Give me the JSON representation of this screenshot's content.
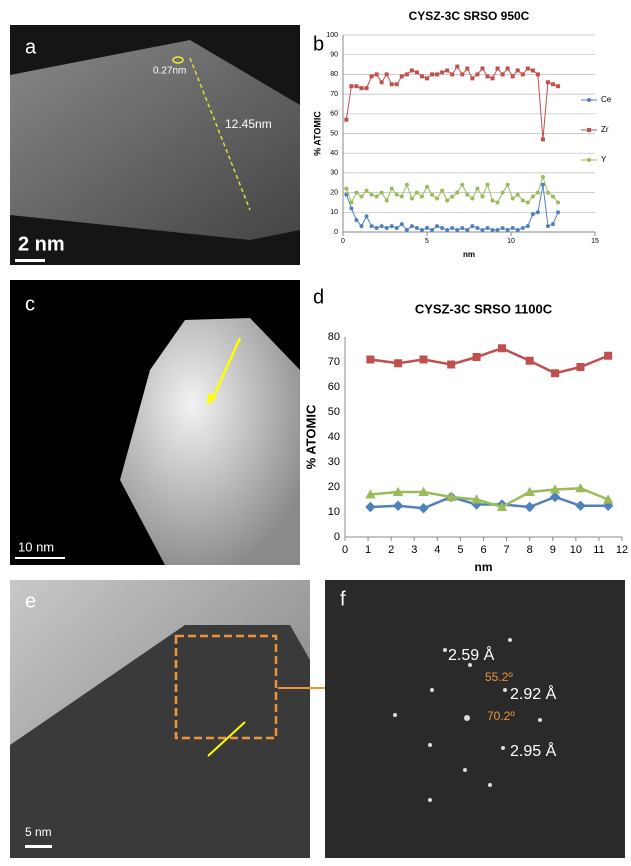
{
  "chart_data": [
    {
      "type": "line",
      "title": "CYSZ-3C SRSO 950C",
      "y_label": "% ATOMIC",
      "x_label": "nm",
      "x": [
        0.2,
        0.5,
        0.8,
        1.1,
        1.4,
        1.7,
        2.0,
        2.3,
        2.6,
        2.9,
        3.2,
        3.5,
        3.8,
        4.1,
        4.4,
        4.7,
        5.0,
        5.3,
        5.6,
        5.9,
        6.2,
        6.5,
        6.8,
        7.1,
        7.4,
        7.7,
        8.0,
        8.3,
        8.6,
        8.9,
        9.2,
        9.5,
        9.8,
        10.1,
        10.4,
        10.7,
        11.0,
        11.3,
        11.6,
        11.9,
        12.2,
        12.5,
        12.8
      ],
      "series": [
        {
          "name": "Ce",
          "color": "#4f81bd",
          "marker": "circle",
          "values": [
            19,
            12,
            6,
            3,
            8,
            3,
            2,
            3,
            2,
            3,
            2,
            4,
            1,
            3,
            2,
            1,
            2,
            1,
            3,
            2,
            1,
            2,
            1,
            2,
            1,
            3,
            2,
            1,
            2,
            1,
            1,
            2,
            1,
            2,
            1,
            2,
            3,
            9,
            10,
            24,
            3,
            4,
            10
          ]
        },
        {
          "name": "Zr",
          "color": "#c0504d",
          "marker": "square",
          "values": [
            57,
            74,
            74,
            73,
            73,
            79,
            80,
            76,
            80,
            75,
            75,
            79,
            80,
            82,
            81,
            79,
            78,
            80,
            80,
            81,
            82,
            80,
            84,
            80,
            83,
            78,
            80,
            83,
            79,
            78,
            83,
            80,
            83,
            79,
            82,
            80,
            83,
            82,
            80,
            47,
            76,
            75,
            74
          ]
        },
        {
          "name": "Y",
          "color": "#9bbb59",
          "marker": "circle",
          "values": [
            22,
            15,
            20,
            18,
            21,
            19,
            18,
            20,
            16,
            22,
            19,
            18,
            24,
            17,
            20,
            18,
            23,
            19,
            17,
            21,
            16,
            18,
            20,
            24,
            19,
            17,
            22,
            18,
            24,
            16,
            15,
            20,
            24,
            17,
            19,
            16,
            15,
            18,
            20,
            28,
            20,
            18,
            15
          ]
        }
      ],
      "xlim": [
        0,
        15
      ],
      "xticks": [
        0,
        5,
        10,
        15
      ],
      "ylim": [
        0,
        100
      ],
      "yticks": [
        0,
        10,
        20,
        30,
        40,
        50,
        60,
        70,
        80,
        90,
        100
      ],
      "grid": true,
      "legend": "right"
    },
    {
      "type": "line",
      "title": "CYSZ-3C SRSO 1100C",
      "y_label": "% ATOMIC",
      "x_label": "nm",
      "x": [
        1.1,
        2.3,
        3.4,
        4.6,
        5.7,
        6.8,
        8.0,
        9.1,
        10.2,
        11.4
      ],
      "series": [
        {
          "color": "#c0504d",
          "marker": "square",
          "values": [
            71,
            69.5,
            71,
            69,
            72,
            75.5,
            70.5,
            65.5,
            68,
            72.5
          ]
        },
        {
          "color": "#4f81bd",
          "marker": "diamond",
          "values": [
            12,
            12.5,
            11.5,
            16,
            13,
            13,
            12,
            16,
            12.5,
            12.5
          ]
        },
        {
          "color": "#9bbb59",
          "marker": "triangle",
          "values": [
            17,
            18,
            18,
            16,
            15,
            12,
            18,
            19,
            19.5,
            15
          ]
        }
      ],
      "xlim": [
        0,
        12
      ],
      "xticks": [
        0,
        1,
        2,
        3,
        4,
        5,
        6,
        7,
        8,
        9,
        10,
        11,
        12
      ],
      "ylim": [
        0,
        80
      ],
      "yticks": [
        0,
        10,
        20,
        30,
        40,
        50,
        60,
        70,
        80
      ],
      "grid": false
    }
  ],
  "panels": {
    "labels": [
      "a",
      "b",
      "c",
      "d",
      "e",
      "f"
    ],
    "a_notes": [
      "0.27nm",
      "12.45nm"
    ],
    "a_scale": "2 nm",
    "c_scale": "10 nm",
    "e_scale": "5 nm",
    "f_notes": [
      "2.59 Å",
      "55.2º",
      "2.92 Å",
      "70.2º",
      "2.95 Å"
    ]
  }
}
